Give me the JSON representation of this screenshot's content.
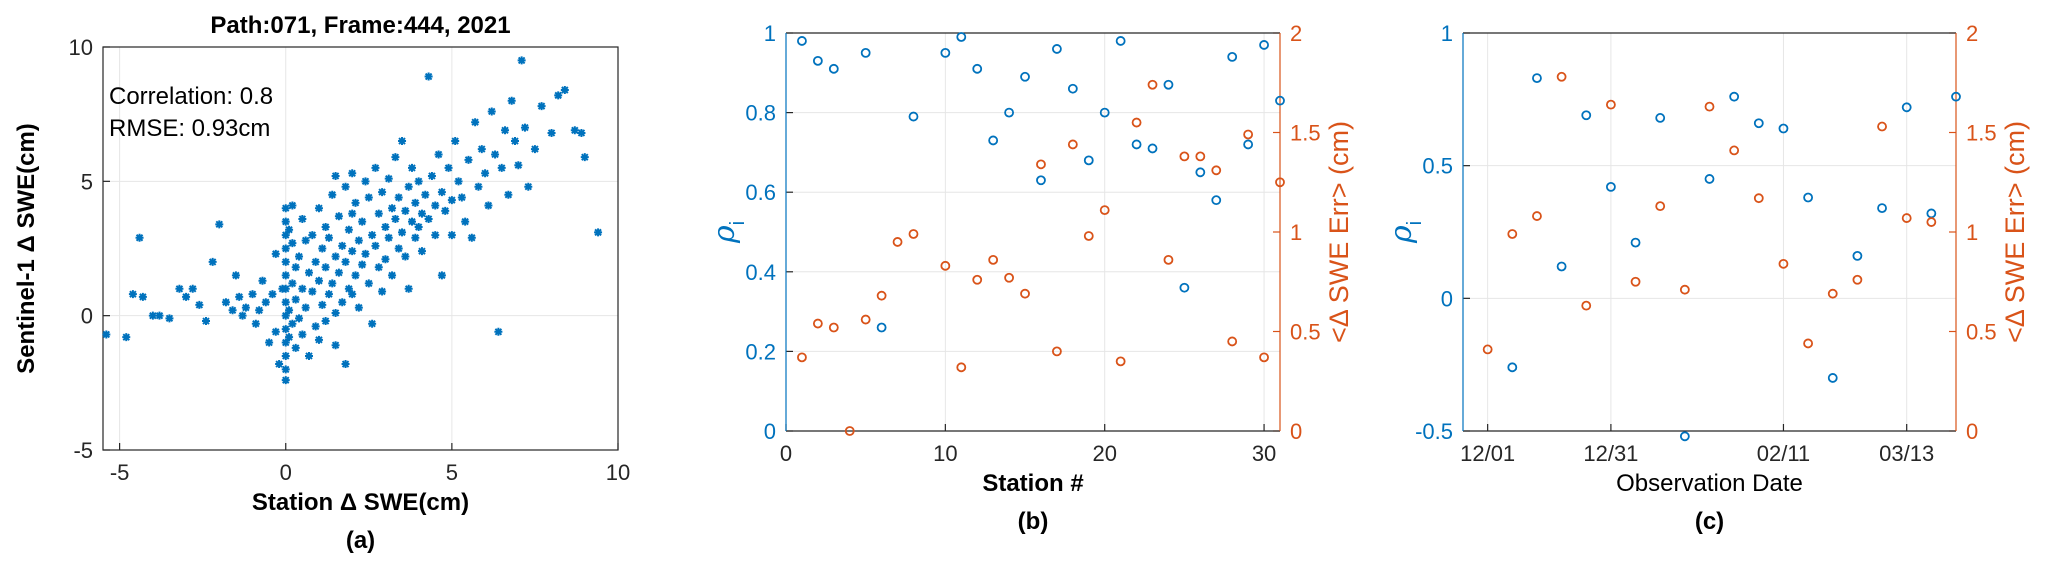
{
  "colors": {
    "blue": "#0072BD",
    "orange": "#D95319",
    "axis": "#262626",
    "grid": "#e6e6e6"
  },
  "panel_labels": [
    "(a)",
    "(b)",
    "(c)"
  ],
  "chart_data": [
    {
      "type": "scatter",
      "title": "Path:071, Frame:444, 2021",
      "xlabel": "Station Δ SWE(cm)",
      "ylabel": "Sentinel-1 Δ SWE(cm)",
      "xlim": [
        -5.5,
        10
      ],
      "ylim": [
        -5,
        10
      ],
      "xticks": [
        -5,
        0,
        5,
        10
      ],
      "yticks": [
        -5,
        0,
        5,
        10
      ],
      "grid": true,
      "annotations": [
        "Correlation: 0.8",
        "RMSE: 0.93cm"
      ],
      "marker": "*",
      "series": [
        {
          "color": "#0072BD",
          "points": [
            [
              -5.4,
              -0.7
            ],
            [
              -4.8,
              -0.8
            ],
            [
              -4.6,
              0.8
            ],
            [
              -4.3,
              0.7
            ],
            [
              -4.4,
              2.9
            ],
            [
              -4.0,
              0.0
            ],
            [
              -3.8,
              0.0
            ],
            [
              -3.5,
              -0.1
            ],
            [
              -3.2,
              1.0
            ],
            [
              -3.0,
              0.7
            ],
            [
              -2.8,
              1.0
            ],
            [
              -2.6,
              0.4
            ],
            [
              -2.4,
              -0.2
            ],
            [
              -2.0,
              3.4
            ],
            [
              -2.2,
              2.0
            ],
            [
              -1.8,
              0.5
            ],
            [
              -1.6,
              0.2
            ],
            [
              -1.5,
              1.5
            ],
            [
              -1.4,
              0.7
            ],
            [
              -1.3,
              0.0
            ],
            [
              -1.2,
              0.3
            ],
            [
              -1.0,
              0.8
            ],
            [
              -0.9,
              -0.3
            ],
            [
              -0.8,
              0.2
            ],
            [
              -0.7,
              1.3
            ],
            [
              -0.6,
              0.5
            ],
            [
              -0.5,
              -1.0
            ],
            [
              -0.4,
              0.8
            ],
            [
              -0.3,
              2.3
            ],
            [
              -0.3,
              -0.6
            ],
            [
              -0.2,
              -1.8
            ],
            [
              -0.1,
              1.0
            ],
            [
              0.0,
              4.0
            ],
            [
              0.0,
              3.5
            ],
            [
              0.0,
              3.0
            ],
            [
              0.0,
              2.5
            ],
            [
              0.0,
              2.0
            ],
            [
              0.0,
              1.5
            ],
            [
              0.0,
              1.0
            ],
            [
              0.0,
              0.5
            ],
            [
              0.0,
              0.0
            ],
            [
              0.0,
              -0.5
            ],
            [
              0.0,
              -1.0
            ],
            [
              0.0,
              -1.5
            ],
            [
              0.0,
              -2.0
            ],
            [
              0.0,
              -2.4
            ],
            [
              0.1,
              3.2
            ],
            [
              0.1,
              0.2
            ],
            [
              0.1,
              -0.8
            ],
            [
              0.2,
              4.1
            ],
            [
              0.2,
              2.7
            ],
            [
              0.2,
              1.2
            ],
            [
              0.2,
              -0.3
            ],
            [
              0.3,
              1.8
            ],
            [
              0.3,
              0.6
            ],
            [
              0.3,
              -1.2
            ],
            [
              0.4,
              2.2
            ],
            [
              0.4,
              -0.1
            ],
            [
              0.5,
              3.6
            ],
            [
              0.5,
              1.0
            ],
            [
              0.5,
              -0.7
            ],
            [
              0.6,
              2.8
            ],
            [
              0.6,
              0.3
            ],
            [
              0.7,
              1.6
            ],
            [
              0.7,
              -1.5
            ],
            [
              0.8,
              3.0
            ],
            [
              0.8,
              0.9
            ],
            [
              0.9,
              2.0
            ],
            [
              0.9,
              -0.4
            ],
            [
              1.0,
              4.0
            ],
            [
              1.0,
              1.3
            ],
            [
              1.0,
              -0.9
            ],
            [
              1.1,
              2.5
            ],
            [
              1.1,
              0.4
            ],
            [
              1.2,
              3.3
            ],
            [
              1.2,
              1.8
            ],
            [
              1.2,
              -0.2
            ],
            [
              1.3,
              2.9
            ],
            [
              1.3,
              0.8
            ],
            [
              1.4,
              4.5
            ],
            [
              1.4,
              1.2
            ],
            [
              1.5,
              5.2
            ],
            [
              1.5,
              2.2
            ],
            [
              1.5,
              0.1
            ],
            [
              1.5,
              -1.1
            ],
            [
              1.6,
              3.7
            ],
            [
              1.6,
              1.6
            ],
            [
              1.7,
              2.6
            ],
            [
              1.7,
              0.5
            ],
            [
              1.8,
              4.8
            ],
            [
              1.8,
              2.0
            ],
            [
              1.8,
              -1.8
            ],
            [
              1.9,
              3.2
            ],
            [
              1.9,
              1.0
            ],
            [
              2.0,
              5.3
            ],
            [
              2.0,
              3.8
            ],
            [
              2.0,
              2.4
            ],
            [
              2.0,
              0.8
            ],
            [
              2.1,
              4.2
            ],
            [
              2.1,
              1.5
            ],
            [
              2.2,
              2.8
            ],
            [
              2.2,
              0.3
            ],
            [
              2.3,
              3.5
            ],
            [
              2.3,
              1.9
            ],
            [
              2.4,
              5.0
            ],
            [
              2.4,
              2.3
            ],
            [
              2.5,
              4.4
            ],
            [
              2.5,
              1.2
            ],
            [
              2.6,
              3.0
            ],
            [
              2.6,
              -0.3
            ],
            [
              2.7,
              5.5
            ],
            [
              2.7,
              2.6
            ],
            [
              2.8,
              3.8
            ],
            [
              2.8,
              1.8
            ],
            [
              2.9,
              4.6
            ],
            [
              2.9,
              0.9
            ],
            [
              3.0,
              3.3
            ],
            [
              3.0,
              2.1
            ],
            [
              3.1,
              5.1
            ],
            [
              3.1,
              2.9
            ],
            [
              3.2,
              4.0
            ],
            [
              3.2,
              1.5
            ],
            [
              3.3,
              3.6
            ],
            [
              3.3,
              5.9
            ],
            [
              3.4,
              2.5
            ],
            [
              3.4,
              4.4
            ],
            [
              3.5,
              3.1
            ],
            [
              3.5,
              6.5
            ],
            [
              3.6,
              3.9
            ],
            [
              3.6,
              2.2
            ],
            [
              3.7,
              4.8
            ],
            [
              3.7,
              1.0
            ],
            [
              3.8,
              3.5
            ],
            [
              3.8,
              5.5
            ],
            [
              3.9,
              2.9
            ],
            [
              3.9,
              4.2
            ],
            [
              4.0,
              3.3
            ],
            [
              4.0,
              5.0
            ],
            [
              4.1,
              3.8
            ],
            [
              4.1,
              2.4
            ],
            [
              4.2,
              4.5
            ],
            [
              4.3,
              3.6
            ],
            [
              4.3,
              8.9
            ],
            [
              4.4,
              5.2
            ],
            [
              4.5,
              3.0
            ],
            [
              4.5,
              4.1
            ],
            [
              4.6,
              6.0
            ],
            [
              4.7,
              4.6
            ],
            [
              4.7,
              1.5
            ],
            [
              4.8,
              3.9
            ],
            [
              4.9,
              5.5
            ],
            [
              5.0,
              4.3
            ],
            [
              5.0,
              3.0
            ],
            [
              5.1,
              6.5
            ],
            [
              5.2,
              5.0
            ],
            [
              5.3,
              4.4
            ],
            [
              5.4,
              3.5
            ],
            [
              5.5,
              5.8
            ],
            [
              5.6,
              2.9
            ],
            [
              5.7,
              7.2
            ],
            [
              5.8,
              4.8
            ],
            [
              5.9,
              6.2
            ],
            [
              6.0,
              5.3
            ],
            [
              6.1,
              4.1
            ],
            [
              6.2,
              7.6
            ],
            [
              6.3,
              6.0
            ],
            [
              6.4,
              -0.6
            ],
            [
              6.5,
              5.5
            ],
            [
              6.6,
              6.9
            ],
            [
              6.7,
              4.5
            ],
            [
              6.8,
              8.0
            ],
            [
              6.9,
              6.5
            ],
            [
              7.0,
              5.6
            ],
            [
              7.1,
              9.5
            ],
            [
              7.2,
              7.0
            ],
            [
              7.3,
              4.8
            ],
            [
              7.5,
              6.2
            ],
            [
              7.7,
              7.8
            ],
            [
              8.0,
              6.8
            ],
            [
              8.2,
              8.2
            ],
            [
              8.4,
              8.4
            ],
            [
              8.7,
              6.9
            ],
            [
              8.9,
              6.8
            ],
            [
              9.0,
              5.9
            ],
            [
              9.4,
              3.1
            ]
          ]
        }
      ]
    },
    {
      "type": "scatter",
      "xlabel": "Station #",
      "ylabel_left": "ρ",
      "ylabel_left_sub": "i",
      "ylabel_right": "<Δ SWE Err> (cm)",
      "xlim": [
        0,
        31
      ],
      "ylim_left": [
        0,
        1
      ],
      "ylim_right": [
        0,
        2
      ],
      "xticks": [
        0,
        10,
        20,
        30
      ],
      "yticks_left": [
        "0",
        "0.2",
        "0.4",
        "0.6",
        "0.8",
        "1"
      ],
      "yticks_right": [
        "0",
        "0.5",
        "1",
        "1.5",
        "2"
      ],
      "grid": true,
      "marker": "o",
      "series": [
        {
          "axis": "left",
          "color": "#0072BD",
          "x": [
            1,
            2,
            3,
            5,
            6,
            8,
            10,
            11,
            12,
            13,
            14,
            15,
            16,
            17,
            18,
            19,
            20,
            21,
            22,
            23,
            24,
            25,
            26,
            27,
            28,
            29,
            30,
            31
          ],
          "y": [
            0.98,
            0.93,
            0.91,
            0.95,
            0.26,
            0.79,
            0.95,
            0.99,
            0.91,
            0.73,
            0.8,
            0.89,
            0.63,
            0.96,
            0.86,
            0.68,
            0.8,
            0.98,
            0.72,
            0.71,
            0.87,
            0.36,
            0.65,
            0.58,
            0.94,
            0.72,
            0.97,
            0.83
          ]
        },
        {
          "axis": "right",
          "color": "#D95319",
          "x": [
            1,
            2,
            3,
            4,
            5,
            6,
            7,
            8,
            10,
            11,
            12,
            13,
            14,
            15,
            16,
            17,
            18,
            19,
            20,
            21,
            22,
            23,
            24,
            25,
            26,
            27,
            28,
            29,
            30,
            31
          ],
          "y": [
            0.37,
            0.54,
            0.52,
            0.0,
            0.56,
            0.68,
            0.95,
            0.99,
            0.83,
            0.32,
            0.76,
            0.86,
            0.77,
            0.69,
            1.34,
            0.4,
            1.44,
            0.98,
            1.11,
            0.35,
            1.55,
            1.74,
            0.86,
            1.38,
            1.38,
            1.31,
            0.45,
            1.49,
            0.37,
            1.25
          ]
        }
      ]
    },
    {
      "type": "scatter",
      "xlabel": "Observation Date",
      "ylabel_left": "ρ",
      "ylabel_left_sub": "i",
      "ylabel_right": "<Δ SWE Err> (cm)",
      "xlim": [
        "2020-11-25",
        "2021-03-25"
      ],
      "xticks": [
        "12/01",
        "12/31",
        "02/11",
        "03/13"
      ],
      "xtick_dates": [
        "2020-12-01",
        "2020-12-31",
        "2021-02-11",
        "2021-03-13"
      ],
      "ylim_left": [
        -0.5,
        1
      ],
      "ylim_right": [
        0,
        2
      ],
      "yticks_left": [
        "-0.5",
        "0",
        "0.5",
        "1"
      ],
      "yticks_right": [
        "0",
        "0.5",
        "1",
        "1.5",
        "2"
      ],
      "grid": true,
      "marker": "o",
      "series": [
        {
          "axis": "left",
          "color": "#0072BD",
          "x": [
            "2020-12-07",
            "2020-12-13",
            "2020-12-19",
            "2020-12-25",
            "2020-12-31",
            "2021-01-06",
            "2021-01-12",
            "2021-01-18",
            "2021-01-24",
            "2021-01-30",
            "2021-02-05",
            "2021-02-11",
            "2021-02-17",
            "2021-02-23",
            "2021-03-01",
            "2021-03-07",
            "2021-03-13",
            "2021-03-19",
            "2021-03-25"
          ],
          "y": [
            -0.26,
            0.83,
            0.12,
            0.69,
            0.42,
            0.21,
            0.68,
            -0.52,
            0.45,
            0.76,
            0.66,
            0.64,
            0.38,
            -0.3,
            0.16,
            0.34,
            0.72,
            0.32,
            0.76
          ]
        },
        {
          "axis": "right",
          "color": "#D95319",
          "x": [
            "2020-12-01",
            "2020-12-07",
            "2020-12-13",
            "2020-12-19",
            "2020-12-25",
            "2020-12-31",
            "2021-01-06",
            "2021-01-12",
            "2021-01-18",
            "2021-01-24",
            "2021-01-30",
            "2021-02-05",
            "2021-02-11",
            "2021-02-17",
            "2021-02-23",
            "2021-03-01",
            "2021-03-07",
            "2021-03-13",
            "2021-03-19"
          ],
          "y": [
            0.41,
            0.99,
            1.08,
            1.78,
            0.63,
            1.64,
            0.75,
            1.13,
            0.71,
            1.63,
            1.41,
            1.17,
            0.84,
            0.44,
            0.69,
            0.76,
            1.53,
            1.07,
            1.05
          ]
        }
      ]
    }
  ]
}
